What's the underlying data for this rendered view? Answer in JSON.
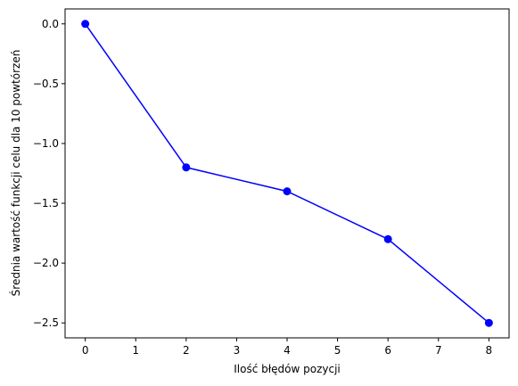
{
  "chart_data": {
    "type": "line",
    "title": "",
    "xlabel": "Ilość błędów pozycji",
    "ylabel": "Średnia wartość funkcji celu dla 10 powtórzeń",
    "xlim": [
      -0.4,
      8.4
    ],
    "ylim": [
      -2.625,
      0.125
    ],
    "x_ticks": [
      0,
      1,
      2,
      3,
      4,
      5,
      6,
      7,
      8
    ],
    "x_tick_labels": [
      "0",
      "1",
      "2",
      "3",
      "4",
      "5",
      "6",
      "7",
      "8"
    ],
    "y_ticks": [
      0.0,
      -0.5,
      -1.0,
      -1.5,
      -2.0,
      -2.5
    ],
    "y_tick_labels": [
      "0.0",
      "−0.5",
      "−1.0",
      "−1.5",
      "−2.0",
      "−2.5"
    ],
    "grid": false,
    "legend": "none",
    "series": [
      {
        "color": "#0000ff",
        "marker": "circle",
        "x": [
          0,
          2,
          4,
          6,
          8
        ],
        "y": [
          0.0,
          -1.2,
          -1.4,
          -1.8,
          -2.5
        ]
      }
    ]
  }
}
